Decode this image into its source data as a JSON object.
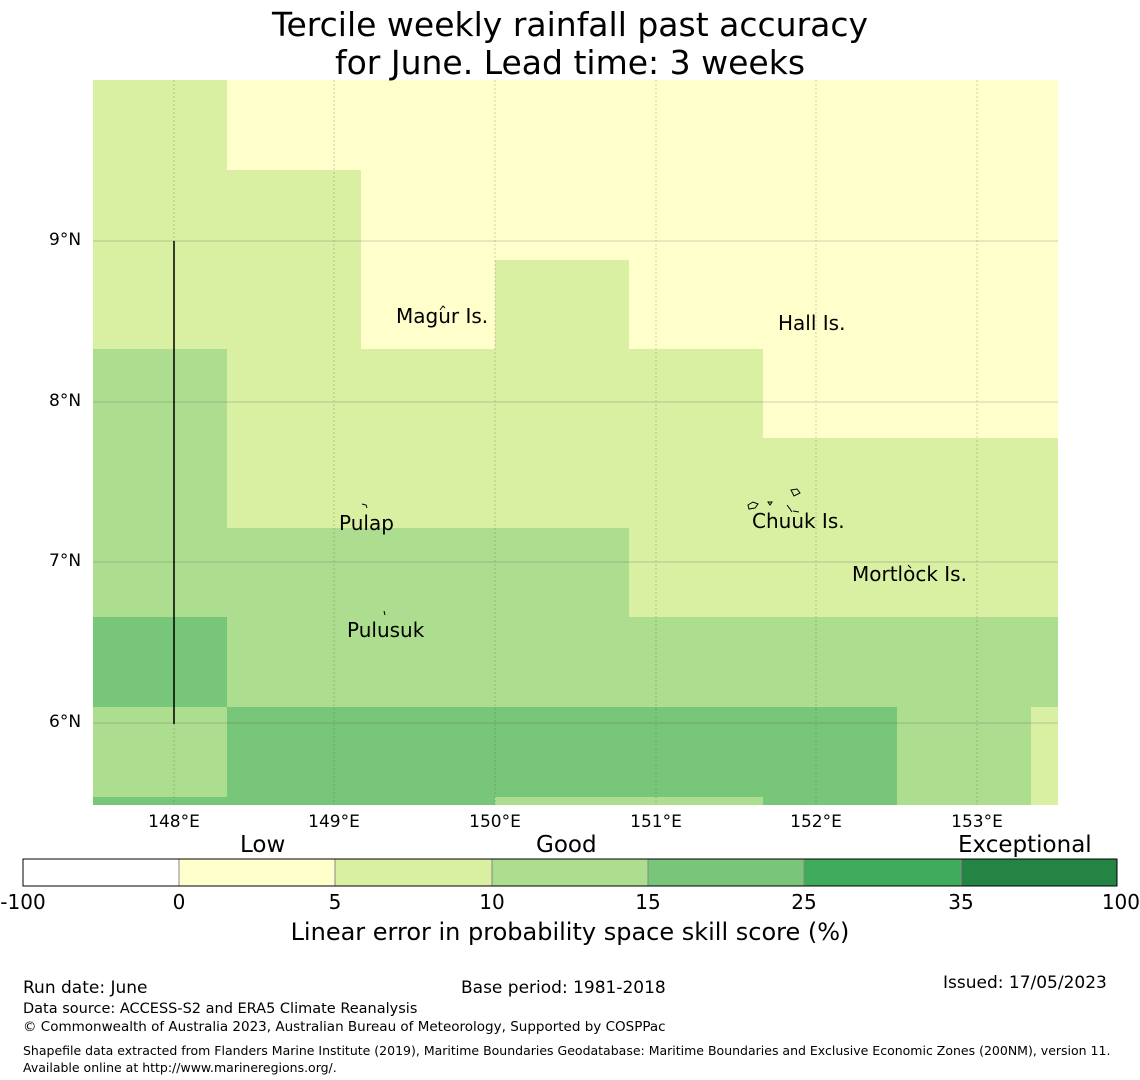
{
  "title_line1": "Tercile weekly rainfall past accuracy",
  "title_line2": "for June. Lead time: 3 weeks",
  "map": {
    "lat_ticks": [
      "9°N",
      "8°N",
      "7°N",
      "6°N"
    ],
    "lon_ticks": [
      "148°E",
      "149°E",
      "150°E",
      "151°E",
      "152°E",
      "153°E"
    ],
    "places": {
      "magur": "Magur Is.",
      "hall": "Hall Is.",
      "pulap": "Pulap",
      "chuuk": "Chuuk Is.",
      "mortlock": "Mortlock Is.",
      "pulusuk": "Pulusuk"
    },
    "colors": {
      "c0_5": "#ffffcc",
      "c5_10": "#d9f0a3",
      "c10_15": "#addd8e",
      "c15_25": "#78c679",
      "c25_35": "#41ab5d",
      "c35_100": "#238443"
    }
  },
  "colorbar": {
    "categories": {
      "low": "Low",
      "good": "Good",
      "exceptional": "Exceptional"
    },
    "ticks": [
      "-100",
      "0",
      "5",
      "10",
      "15",
      "25",
      "35",
      "100"
    ],
    "title": "Linear error in probability space skill score (%)"
  },
  "footer": {
    "run_date": "Run date: June",
    "base_period": "Base period: 1981-2018",
    "issued": "Issued: 17/05/2023",
    "data_source": "Data source: ACCESS-S2 and ERA5 Climate Reanalysis",
    "copyright": "© Commonwealth of Australia 2023, Australian Bureau of Meteorology, Supported by COSPPac",
    "shapefile": "Shapefile data extracted from Flanders Marine Institute (2019), Maritime Boundaries Geodatabase: Maritime Boundaries and Exclusive Economic Zones (200NM), version 11. Available online at http://www.marineregions.org/."
  }
}
